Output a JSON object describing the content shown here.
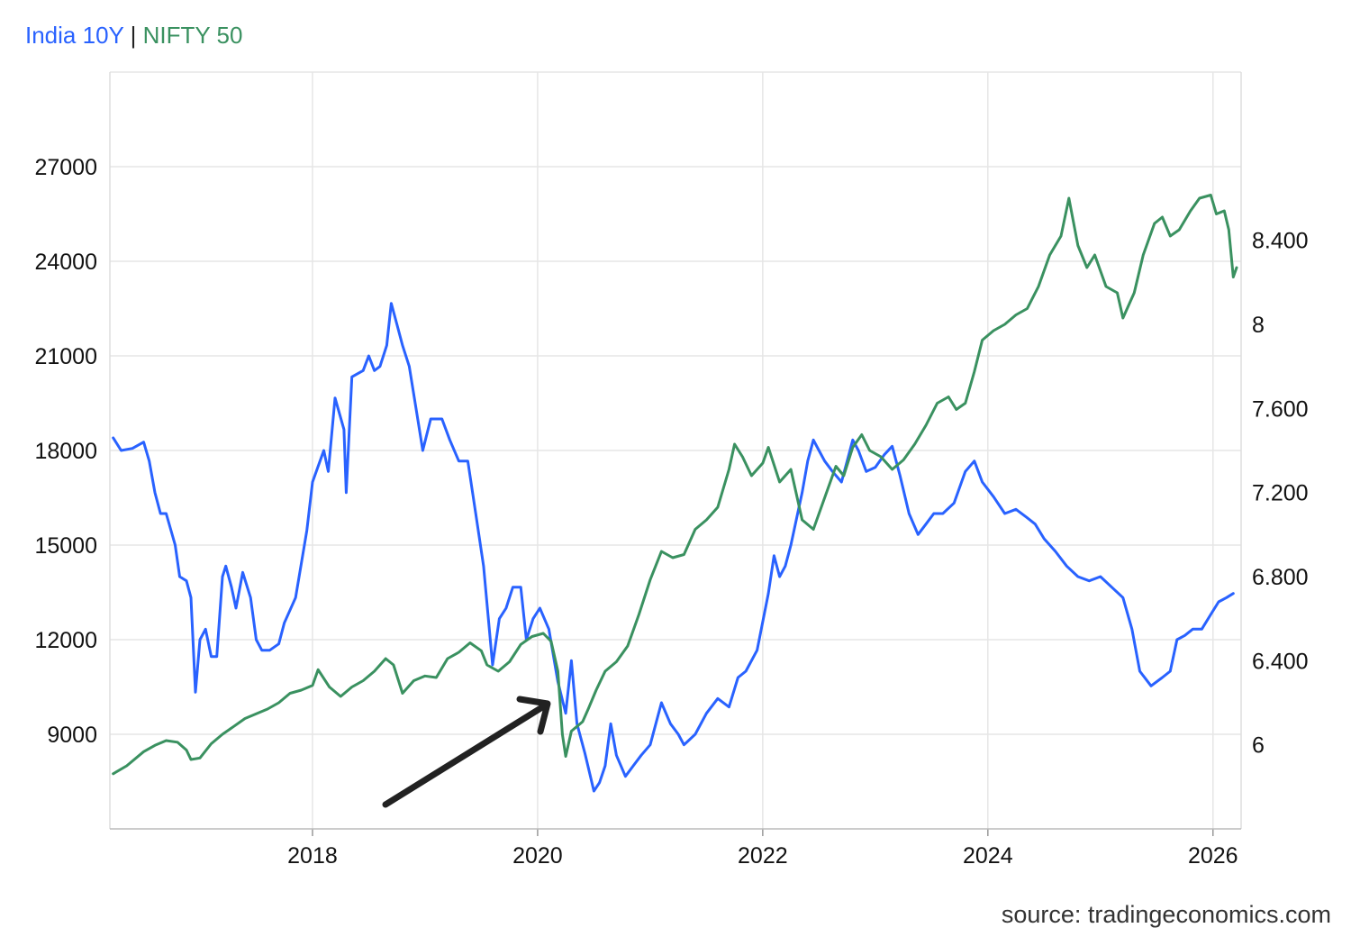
{
  "legend": {
    "series1": "India 10Y",
    "separator": "|",
    "series2": "NIFTY 50"
  },
  "source": "source: tradingeconomics.com",
  "colors": {
    "india10y": "#2962ff",
    "nifty50": "#3a9160",
    "grid": "#e6e6e6",
    "annotation_arrow": "#222222"
  },
  "chart_data": {
    "type": "line",
    "x_ticks": [
      "2018",
      "2020",
      "2022",
      "2024",
      "2026"
    ],
    "y_left_ticks": [
      "9000",
      "12000",
      "15000",
      "18000",
      "21000",
      "24000",
      "27000"
    ],
    "y_right_ticks": [
      "6",
      "6.400",
      "6.800",
      "7.200",
      "7.600",
      "8",
      "8.400"
    ],
    "xlim": [
      2016.2,
      2026.25
    ],
    "ylim_left": [
      6000,
      30000
    ],
    "ylim_right": [
      5.6,
      9.2
    ],
    "grid": true,
    "annotation": {
      "type": "arrow",
      "pointing_to": [
        2020.1,
        9600
      ]
    },
    "series": [
      {
        "name": "India 10Y",
        "axis": "right",
        "color": "#2962ff",
        "points": [
          [
            2016.23,
            7.46
          ],
          [
            2016.3,
            7.4
          ],
          [
            2016.4,
            7.41
          ],
          [
            2016.5,
            7.44
          ],
          [
            2016.55,
            7.35
          ],
          [
            2016.6,
            7.2
          ],
          [
            2016.65,
            7.1
          ],
          [
            2016.7,
            7.1
          ],
          [
            2016.78,
            6.95
          ],
          [
            2016.82,
            6.8
          ],
          [
            2016.88,
            6.78
          ],
          [
            2016.92,
            6.7
          ],
          [
            2016.96,
            6.25
          ],
          [
            2017.0,
            6.5
          ],
          [
            2017.05,
            6.55
          ],
          [
            2017.1,
            6.42
          ],
          [
            2017.15,
            6.42
          ],
          [
            2017.2,
            6.8
          ],
          [
            2017.23,
            6.85
          ],
          [
            2017.28,
            6.75
          ],
          [
            2017.32,
            6.65
          ],
          [
            2017.38,
            6.82
          ],
          [
            2017.45,
            6.7
          ],
          [
            2017.5,
            6.5
          ],
          [
            2017.55,
            6.45
          ],
          [
            2017.62,
            6.45
          ],
          [
            2017.7,
            6.48
          ],
          [
            2017.75,
            6.58
          ],
          [
            2017.85,
            6.7
          ],
          [
            2017.95,
            7.02
          ],
          [
            2018.0,
            7.25
          ],
          [
            2018.1,
            7.4
          ],
          [
            2018.14,
            7.3
          ],
          [
            2018.2,
            7.65
          ],
          [
            2018.28,
            7.5
          ],
          [
            2018.3,
            7.2
          ],
          [
            2018.35,
            7.75
          ],
          [
            2018.45,
            7.78
          ],
          [
            2018.5,
            7.85
          ],
          [
            2018.55,
            7.78
          ],
          [
            2018.6,
            7.8
          ],
          [
            2018.66,
            7.9
          ],
          [
            2018.7,
            8.1
          ],
          [
            2018.75,
            8.0
          ],
          [
            2018.8,
            7.9
          ],
          [
            2018.86,
            7.8
          ],
          [
            2018.92,
            7.6
          ],
          [
            2018.98,
            7.4
          ],
          [
            2019.05,
            7.55
          ],
          [
            2019.15,
            7.55
          ],
          [
            2019.22,
            7.45
          ],
          [
            2019.3,
            7.35
          ],
          [
            2019.38,
            7.35
          ],
          [
            2019.45,
            7.1
          ],
          [
            2019.52,
            6.85
          ],
          [
            2019.6,
            6.38
          ],
          [
            2019.66,
            6.6
          ],
          [
            2019.72,
            6.65
          ],
          [
            2019.78,
            6.75
          ],
          [
            2019.85,
            6.75
          ],
          [
            2019.9,
            6.5
          ],
          [
            2019.96,
            6.6
          ],
          [
            2020.02,
            6.65
          ],
          [
            2020.1,
            6.55
          ],
          [
            2020.18,
            6.3
          ],
          [
            2020.25,
            6.15
          ],
          [
            2020.3,
            6.4
          ],
          [
            2020.35,
            6.1
          ],
          [
            2020.42,
            5.96
          ],
          [
            2020.5,
            5.78
          ],
          [
            2020.55,
            5.82
          ],
          [
            2020.6,
            5.9
          ],
          [
            2020.65,
            6.1
          ],
          [
            2020.7,
            5.95
          ],
          [
            2020.78,
            5.85
          ],
          [
            2020.85,
            5.9
          ],
          [
            2020.92,
            5.95
          ],
          [
            2021.0,
            6.0
          ],
          [
            2021.1,
            6.2
          ],
          [
            2021.18,
            6.1
          ],
          [
            2021.25,
            6.05
          ],
          [
            2021.3,
            6.0
          ],
          [
            2021.4,
            6.05
          ],
          [
            2021.5,
            6.15
          ],
          [
            2021.6,
            6.22
          ],
          [
            2021.7,
            6.18
          ],
          [
            2021.78,
            6.32
          ],
          [
            2021.85,
            6.35
          ],
          [
            2021.95,
            6.45
          ],
          [
            2022.05,
            6.72
          ],
          [
            2022.1,
            6.9
          ],
          [
            2022.15,
            6.8
          ],
          [
            2022.2,
            6.85
          ],
          [
            2022.25,
            6.95
          ],
          [
            2022.35,
            7.2
          ],
          [
            2022.4,
            7.35
          ],
          [
            2022.45,
            7.45
          ],
          [
            2022.5,
            7.4
          ],
          [
            2022.55,
            7.35
          ],
          [
            2022.62,
            7.3
          ],
          [
            2022.7,
            7.25
          ],
          [
            2022.75,
            7.35
          ],
          [
            2022.8,
            7.45
          ],
          [
            2022.85,
            7.4
          ],
          [
            2022.92,
            7.3
          ],
          [
            2023.0,
            7.32
          ],
          [
            2023.08,
            7.38
          ],
          [
            2023.15,
            7.42
          ],
          [
            2023.22,
            7.28
          ],
          [
            2023.3,
            7.1
          ],
          [
            2023.38,
            7.0
          ],
          [
            2023.45,
            7.05
          ],
          [
            2023.52,
            7.1
          ],
          [
            2023.6,
            7.1
          ],
          [
            2023.7,
            7.15
          ],
          [
            2023.8,
            7.3
          ],
          [
            2023.88,
            7.35
          ],
          [
            2023.95,
            7.25
          ],
          [
            2024.05,
            7.18
          ],
          [
            2024.15,
            7.1
          ],
          [
            2024.25,
            7.12
          ],
          [
            2024.35,
            7.08
          ],
          [
            2024.42,
            7.05
          ],
          [
            2024.5,
            6.98
          ],
          [
            2024.6,
            6.92
          ],
          [
            2024.7,
            6.85
          ],
          [
            2024.8,
            6.8
          ],
          [
            2024.9,
            6.78
          ],
          [
            2025.0,
            6.8
          ],
          [
            2025.1,
            6.75
          ],
          [
            2025.2,
            6.7
          ],
          [
            2025.28,
            6.55
          ],
          [
            2025.35,
            6.35
          ],
          [
            2025.45,
            6.28
          ],
          [
            2025.55,
            6.32
          ],
          [
            2025.62,
            6.35
          ],
          [
            2025.68,
            6.5
          ],
          [
            2025.75,
            6.52
          ],
          [
            2025.82,
            6.55
          ],
          [
            2025.9,
            6.55
          ],
          [
            2025.98,
            6.62
          ],
          [
            2026.05,
            6.68
          ],
          [
            2026.12,
            6.7
          ],
          [
            2026.18,
            6.72
          ]
        ]
      },
      {
        "name": "NIFTY 50",
        "axis": "left",
        "color": "#3a9160",
        "points": [
          [
            2016.23,
            7750
          ],
          [
            2016.35,
            8000
          ],
          [
            2016.5,
            8450
          ],
          [
            2016.6,
            8650
          ],
          [
            2016.7,
            8800
          ],
          [
            2016.8,
            8750
          ],
          [
            2016.88,
            8500
          ],
          [
            2016.92,
            8200
          ],
          [
            2017.0,
            8250
          ],
          [
            2017.1,
            8700
          ],
          [
            2017.2,
            9000
          ],
          [
            2017.3,
            9250
          ],
          [
            2017.4,
            9500
          ],
          [
            2017.5,
            9650
          ],
          [
            2017.6,
            9800
          ],
          [
            2017.7,
            10000
          ],
          [
            2017.8,
            10300
          ],
          [
            2017.9,
            10400
          ],
          [
            2018.0,
            10550
          ],
          [
            2018.05,
            11050
          ],
          [
            2018.15,
            10500
          ],
          [
            2018.25,
            10200
          ],
          [
            2018.35,
            10500
          ],
          [
            2018.45,
            10700
          ],
          [
            2018.55,
            11000
          ],
          [
            2018.65,
            11400
          ],
          [
            2018.72,
            11200
          ],
          [
            2018.8,
            10300
          ],
          [
            2018.9,
            10700
          ],
          [
            2019.0,
            10850
          ],
          [
            2019.1,
            10800
          ],
          [
            2019.2,
            11400
          ],
          [
            2019.3,
            11600
          ],
          [
            2019.4,
            11900
          ],
          [
            2019.5,
            11650
          ],
          [
            2019.55,
            11200
          ],
          [
            2019.65,
            11000
          ],
          [
            2019.75,
            11300
          ],
          [
            2019.85,
            11850
          ],
          [
            2019.95,
            12100
          ],
          [
            2020.05,
            12200
          ],
          [
            2020.12,
            11950
          ],
          [
            2020.18,
            11000
          ],
          [
            2020.22,
            9000
          ],
          [
            2020.25,
            8300
          ],
          [
            2020.3,
            9100
          ],
          [
            2020.4,
            9400
          ],
          [
            2020.45,
            9800
          ],
          [
            2020.52,
            10400
          ],
          [
            2020.6,
            11000
          ],
          [
            2020.7,
            11300
          ],
          [
            2020.8,
            11800
          ],
          [
            2020.9,
            12800
          ],
          [
            2021.0,
            13900
          ],
          [
            2021.1,
            14800
          ],
          [
            2021.2,
            14600
          ],
          [
            2021.3,
            14700
          ],
          [
            2021.4,
            15500
          ],
          [
            2021.5,
            15800
          ],
          [
            2021.6,
            16200
          ],
          [
            2021.7,
            17400
          ],
          [
            2021.75,
            18200
          ],
          [
            2021.82,
            17800
          ],
          [
            2021.9,
            17200
          ],
          [
            2022.0,
            17600
          ],
          [
            2022.05,
            18100
          ],
          [
            2022.15,
            17000
          ],
          [
            2022.25,
            17400
          ],
          [
            2022.35,
            15800
          ],
          [
            2022.45,
            15500
          ],
          [
            2022.55,
            16500
          ],
          [
            2022.65,
            17500
          ],
          [
            2022.72,
            17200
          ],
          [
            2022.8,
            18100
          ],
          [
            2022.88,
            18500
          ],
          [
            2022.95,
            18000
          ],
          [
            2023.05,
            17800
          ],
          [
            2023.15,
            17400
          ],
          [
            2023.25,
            17700
          ],
          [
            2023.35,
            18200
          ],
          [
            2023.45,
            18800
          ],
          [
            2023.55,
            19500
          ],
          [
            2023.65,
            19700
          ],
          [
            2023.72,
            19300
          ],
          [
            2023.8,
            19500
          ],
          [
            2023.88,
            20500
          ],
          [
            2023.95,
            21500
          ],
          [
            2024.05,
            21800
          ],
          [
            2024.15,
            22000
          ],
          [
            2024.25,
            22300
          ],
          [
            2024.35,
            22500
          ],
          [
            2024.45,
            23200
          ],
          [
            2024.55,
            24200
          ],
          [
            2024.65,
            24800
          ],
          [
            2024.72,
            26000
          ],
          [
            2024.8,
            24500
          ],
          [
            2024.88,
            23800
          ],
          [
            2024.95,
            24200
          ],
          [
            2025.05,
            23200
          ],
          [
            2025.15,
            23000
          ],
          [
            2025.2,
            22200
          ],
          [
            2025.3,
            23000
          ],
          [
            2025.38,
            24200
          ],
          [
            2025.48,
            25200
          ],
          [
            2025.55,
            25400
          ],
          [
            2025.62,
            24800
          ],
          [
            2025.7,
            25000
          ],
          [
            2025.8,
            25600
          ],
          [
            2025.88,
            26000
          ],
          [
            2025.98,
            26100
          ],
          [
            2026.03,
            25500
          ],
          [
            2026.1,
            25600
          ],
          [
            2026.14,
            25000
          ],
          [
            2026.18,
            23500
          ],
          [
            2026.21,
            23800
          ]
        ]
      }
    ]
  }
}
